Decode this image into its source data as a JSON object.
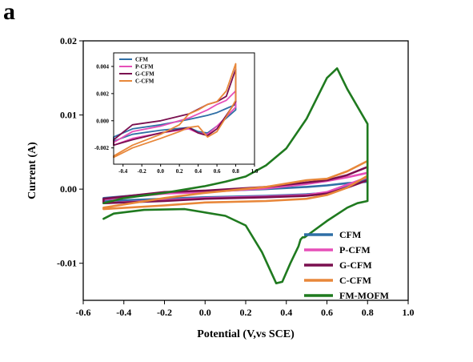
{
  "panel_label": "a",
  "chart_data": [
    {
      "type": "line",
      "xlabel": "Potential (V,vs SCE)",
      "ylabel": "Current (A)",
      "xlim": [
        -0.6,
        1.0
      ],
      "ylim": [
        -0.015,
        0.02
      ],
      "xticks": [
        -0.6,
        -0.4,
        -0.2,
        0.0,
        0.2,
        0.4,
        0.6,
        0.8,
        1.0
      ],
      "xtick_labels": [
        "-0.6",
        "-0.4",
        "-0.2",
        "0.0",
        "0.2",
        "0.4",
        "0.6",
        "0.8",
        "1.0"
      ],
      "yticks": [
        -0.01,
        0.0,
        0.01,
        0.02
      ],
      "ytick_labels": [
        "-0.01",
        "0.00",
        "0.01",
        "0.02"
      ],
      "legend_position": "bottom-right",
      "series": [
        {
          "name": "CFM",
          "color": "#2f6fa6",
          "x": [
            -0.5,
            -0.2,
            0.0,
            0.3,
            0.5,
            0.6,
            0.7,
            0.8,
            0.8,
            0.7,
            0.6,
            0.5,
            0.3,
            0.0,
            -0.2,
            -0.5,
            -0.5
          ],
          "y": [
            -0.0012,
            -0.0005,
            -0.0003,
            0.0,
            0.0003,
            0.0005,
            0.0008,
            0.001,
            0.0013,
            0.0005,
            -0.0005,
            -0.0007,
            -0.0009,
            -0.0011,
            -0.0013,
            -0.0016,
            -0.0012
          ]
        },
        {
          "name": "P-CFM",
          "color": "#e64fb8",
          "x": [
            -0.5,
            -0.2,
            0.0,
            0.3,
            0.5,
            0.6,
            0.7,
            0.8,
            0.8,
            0.7,
            0.6,
            0.5,
            0.3,
            0.0,
            -0.2,
            -0.5,
            -0.5
          ],
          "y": [
            -0.0014,
            -0.0006,
            -0.0004,
            0.0001,
            0.0007,
            0.0011,
            0.0016,
            0.0022,
            0.0016,
            0.0006,
            -0.0004,
            -0.0008,
            -0.001,
            -0.0012,
            -0.0015,
            -0.0019,
            -0.0014
          ]
        },
        {
          "name": "G-CFM",
          "color": "#7a0f4f",
          "x": [
            -0.5,
            -0.2,
            0.0,
            0.3,
            0.5,
            0.6,
            0.7,
            0.8,
            0.8,
            0.7,
            0.6,
            0.5,
            0.3,
            0.0,
            -0.2,
            -0.5,
            -0.5
          ],
          "y": [
            -0.0013,
            -0.0004,
            -0.0002,
            0.0003,
            0.0009,
            0.0012,
            0.0019,
            0.003,
            0.0012,
            0.0002,
            -0.0006,
            -0.0009,
            -0.0011,
            -0.0013,
            -0.0016,
            -0.0019,
            -0.0013
          ]
        },
        {
          "name": "C-CFM",
          "color": "#e8873a",
          "x": [
            -0.5,
            -0.2,
            0.0,
            0.3,
            0.5,
            0.6,
            0.7,
            0.8,
            0.8,
            0.7,
            0.6,
            0.5,
            0.3,
            0.0,
            -0.2,
            -0.5,
            -0.5
          ],
          "y": [
            -0.0025,
            -0.0012,
            -0.0005,
            0.0003,
            0.0012,
            0.0014,
            0.0024,
            0.0038,
            0.0018,
            0.0002,
            -0.0008,
            -0.0013,
            -0.0016,
            -0.0018,
            -0.0022,
            -0.0027,
            -0.0025
          ]
        },
        {
          "name": "FM-MOFM",
          "color": "#1f7a1f",
          "x": [
            -0.5,
            -0.45,
            -0.3,
            -0.1,
            0.1,
            0.2,
            0.28,
            0.33,
            0.35,
            0.38,
            0.42,
            0.46,
            0.47,
            0.48,
            0.49,
            0.5,
            0.6,
            0.7,
            0.75,
            0.8,
            0.8,
            0.7,
            0.65,
            0.6,
            0.5,
            0.4,
            0.3,
            0.2,
            0.1,
            0.0,
            -0.2,
            -0.4,
            -0.5
          ],
          "y": [
            -0.004,
            -0.0033,
            -0.0028,
            -0.0027,
            -0.0036,
            -0.0049,
            -0.0085,
            -0.0115,
            -0.0127,
            -0.0125,
            -0.01,
            -0.0077,
            -0.0068,
            -0.0065,
            -0.0065,
            -0.0063,
            -0.0043,
            -0.0025,
            -0.0019,
            -0.0016,
            0.0088,
            0.0135,
            0.0163,
            0.015,
            0.0095,
            0.0055,
            0.0032,
            0.0017,
            0.001,
            0.0004,
            -0.0005,
            -0.0012,
            -0.0019
          ]
        }
      ]
    },
    {
      "type": "line",
      "inset": true,
      "xlim": [
        -0.5,
        1.0
      ],
      "ylim": [
        -0.0032,
        0.005
      ],
      "xticks": [
        -0.4,
        -0.2,
        0.0,
        0.2,
        0.4,
        0.6,
        0.8,
        1.0
      ],
      "xtick_labels": [
        "-0.4",
        "-0.2",
        "0.0",
        "0.2",
        "0.4",
        "0.6",
        "0.8",
        "1.0"
      ],
      "yticks": [
        -0.002,
        0.0,
        0.002,
        0.004
      ],
      "ytick_labels": [
        "-0.002",
        "0.000",
        "0.002",
        "0.004"
      ],
      "legend_position": "top-left",
      "series": [
        {
          "name": "CFM",
          "color": "#2f6fa6",
          "x": [
            -0.5,
            -0.3,
            0.0,
            0.3,
            0.5,
            0.6,
            0.7,
            0.8,
            0.8,
            0.7,
            0.6,
            0.5,
            0.4,
            0.3,
            0.0,
            -0.3,
            -0.5,
            -0.5
          ],
          "y": [
            -0.0012,
            -0.0006,
            -0.0003,
            0.0001,
            0.0004,
            0.0006,
            0.0009,
            0.0012,
            0.0008,
            0.0002,
            -0.0004,
            -0.0009,
            -0.0008,
            -0.0005,
            -0.0007,
            -0.001,
            -0.0015,
            -0.0012
          ]
        },
        {
          "name": "P-CFM",
          "color": "#e64fb8",
          "x": [
            -0.5,
            -0.3,
            0.0,
            0.3,
            0.5,
            0.6,
            0.7,
            0.8,
            0.8,
            0.7,
            0.6,
            0.5,
            0.4,
            0.3,
            0.0,
            -0.3,
            -0.5,
            -0.5
          ],
          "y": [
            -0.0016,
            -0.0008,
            -0.0004,
            0.0002,
            0.0008,
            0.0012,
            0.0015,
            0.0022,
            0.001,
            0.0003,
            -0.0004,
            -0.001,
            -0.0009,
            -0.0006,
            -0.0009,
            -0.0013,
            -0.0018,
            -0.0016
          ]
        },
        {
          "name": "G-CFM",
          "color": "#7a0f4f",
          "x": [
            -0.5,
            -0.3,
            0.0,
            0.3,
            0.5,
            0.6,
            0.7,
            0.8,
            0.8,
            0.7,
            0.6,
            0.5,
            0.4,
            0.3,
            0.0,
            -0.3,
            -0.5,
            -0.5
          ],
          "y": [
            -0.0014,
            -0.0003,
            0.0,
            0.0005,
            0.0012,
            0.0014,
            0.0018,
            0.0038,
            0.0014,
            0.0004,
            -0.0006,
            -0.0011,
            -0.0009,
            -0.0005,
            -0.0009,
            -0.0014,
            -0.0018,
            -0.0014
          ]
        },
        {
          "name": "C-CFM",
          "color": "#e8873a",
          "x": [
            -0.5,
            -0.3,
            0.0,
            0.2,
            0.3,
            0.4,
            0.5,
            0.6,
            0.7,
            0.8,
            0.8,
            0.7,
            0.6,
            0.5,
            0.4,
            0.3,
            0.2,
            0.0,
            -0.3,
            -0.5,
            -0.5
          ],
          "y": [
            -0.0026,
            -0.0018,
            -0.001,
            -0.0003,
            0.0005,
            0.0008,
            0.0012,
            0.0014,
            0.0022,
            0.0042,
            0.0015,
            0.0003,
            -0.0008,
            -0.0012,
            -0.0004,
            -0.0005,
            -0.0008,
            -0.0013,
            -0.002,
            -0.0027,
            -0.0026
          ]
        }
      ]
    }
  ]
}
